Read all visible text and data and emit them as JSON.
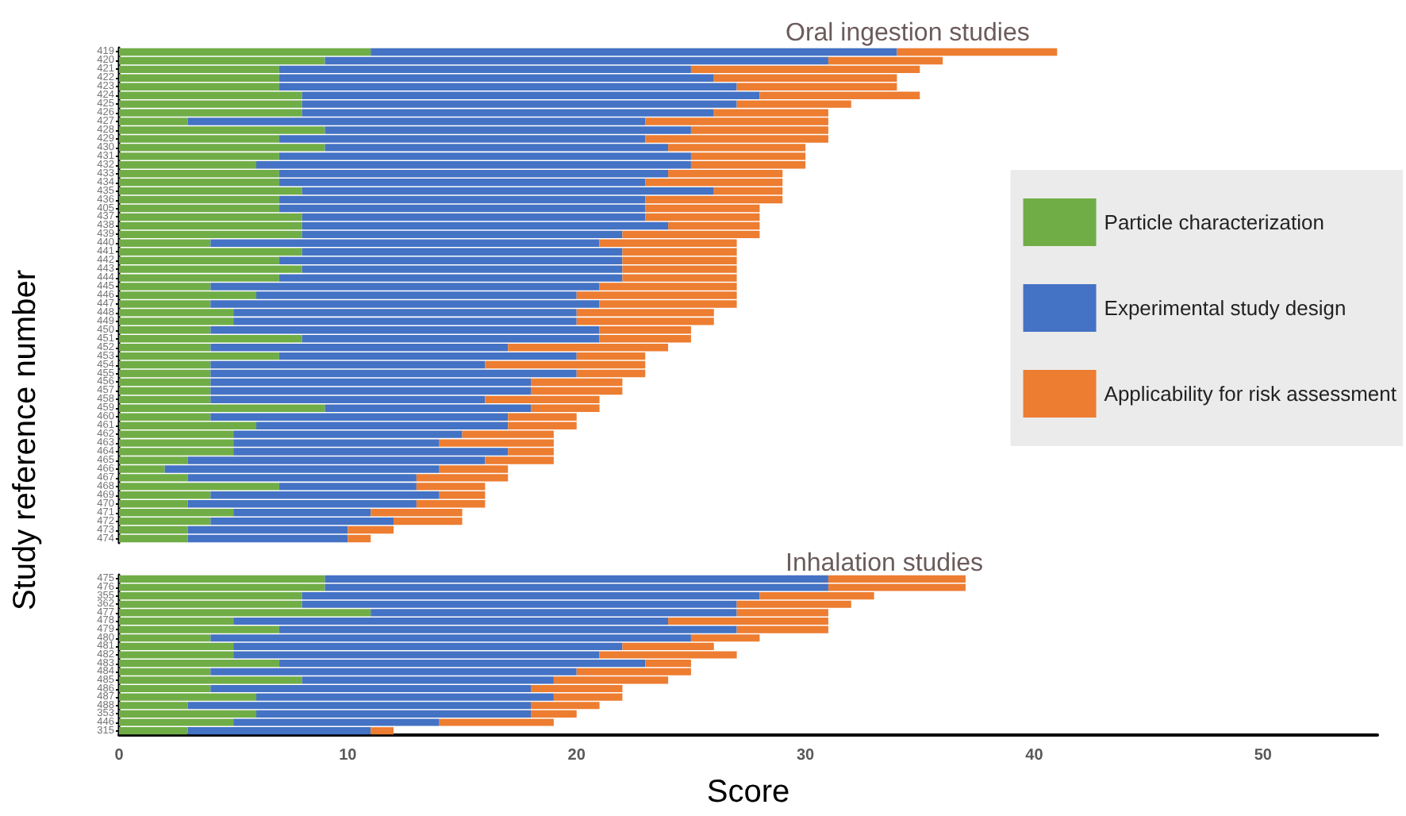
{
  "chart_data": [
    {
      "type": "bar",
      "title": "Oral ingestion studies",
      "ylabel": "Study reference number",
      "orientation": "horizontal",
      "stacked": true,
      "legend": "right",
      "tick_labels": "y",
      "xlim": [
        0,
        50
      ],
      "xticks": [
        0,
        10,
        20,
        30,
        40,
        50
      ],
      "categories": [
        "419",
        "420",
        "421",
        "422",
        "423",
        "424",
        "425",
        "426",
        "427",
        "428",
        "429",
        "430",
        "431",
        "432",
        "433",
        "434",
        "435",
        "436",
        "405",
        "437",
        "438",
        "439",
        "440",
        "441",
        "442",
        "443",
        "444",
        "445",
        "446",
        "447",
        "448",
        "449",
        "450",
        "451",
        "452",
        "453",
        "454",
        "455",
        "456",
        "457",
        "458",
        "459",
        "460",
        "461",
        "462",
        "463",
        "464",
        "465",
        "466",
        "467",
        "468",
        "469",
        "470",
        "471",
        "472",
        "473",
        "474"
      ],
      "series": [
        {
          "name": "Particle characterization",
          "color": "#70ad47",
          "values": [
            11,
            9,
            7,
            7,
            7,
            8,
            8,
            8,
            3,
            9,
            7,
            9,
            7,
            6,
            7,
            7,
            8,
            7,
            7,
            8,
            8,
            8,
            4,
            8,
            7,
            8,
            7,
            4,
            6,
            4,
            5,
            5,
            4,
            8,
            4,
            7,
            4,
            4,
            4,
            4,
            4,
            9,
            4,
            6,
            5,
            5,
            5,
            3,
            2,
            3,
            7,
            4,
            3,
            5,
            4,
            3,
            3
          ]
        },
        {
          "name": "Experimental study design",
          "color": "#4472c4",
          "values": [
            23,
            22,
            18,
            19,
            20,
            20,
            19,
            18,
            20,
            16,
            16,
            15,
            18,
            19,
            17,
            16,
            18,
            16,
            16,
            15,
            16,
            14,
            17,
            14,
            15,
            14,
            15,
            17,
            14,
            17,
            15,
            15,
            17,
            13,
            13,
            13,
            12,
            16,
            14,
            14,
            12,
            9,
            13,
            11,
            10,
            9,
            12,
            13,
            12,
            10,
            6,
            10,
            10,
            6,
            8,
            7,
            7
          ]
        },
        {
          "name": "Applicability for risk assessment",
          "color": "#ed7d31",
          "values": [
            7,
            5,
            10,
            8,
            7,
            7,
            5,
            5,
            8,
            6,
            8,
            6,
            5,
            5,
            5,
            6,
            3,
            6,
            5,
            5,
            4,
            6,
            6,
            5,
            5,
            5,
            5,
            6,
            7,
            6,
            6,
            6,
            4,
            4,
            7,
            3,
            7,
            3,
            4,
            4,
            5,
            3,
            3,
            3,
            4,
            5,
            2,
            3,
            3,
            4,
            3,
            2,
            3,
            4,
            3,
            2,
            1
          ]
        }
      ]
    },
    {
      "type": "bar",
      "title": "Inhalation studies",
      "xlabel": "Score",
      "orientation": "horizontal",
      "stacked": true,
      "xlim": [
        0,
        55
      ],
      "xticks": [
        0,
        10,
        20,
        30,
        40,
        50
      ],
      "categories": [
        "475",
        "476",
        "355",
        "362",
        "477",
        "478",
        "479",
        "480",
        "481",
        "482",
        "483",
        "484",
        "485",
        "486",
        "487",
        "488",
        "353",
        "446",
        "315"
      ],
      "series": [
        {
          "color": "#70ad47",
          "values": [
            9,
            9,
            8,
            8,
            11,
            5,
            7,
            4,
            5,
            5,
            7,
            4,
            8,
            4,
            6,
            3,
            6,
            5,
            3
          ]
        },
        {
          "color": "#4472c4",
          "values": [
            22,
            22,
            20,
            19,
            16,
            19,
            20,
            21,
            17,
            16,
            16,
            16,
            11,
            14,
            13,
            15,
            12,
            9,
            8
          ]
        },
        {
          "color": "#ed7d31",
          "values": [
            6,
            6,
            5,
            5,
            4,
            7,
            4,
            3,
            4,
            6,
            2,
            5,
            5,
            4,
            3,
            3,
            2,
            5,
            1
          ]
        }
      ]
    }
  ]
}
